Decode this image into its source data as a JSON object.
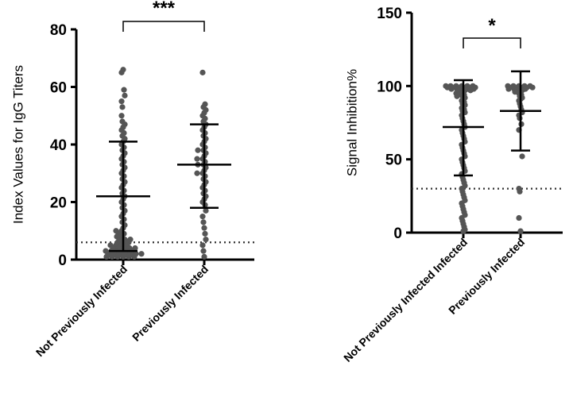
{
  "chart_data": [
    {
      "type": "scatter",
      "subtype": "dot-plot-mean-sd",
      "title": "",
      "xlabel": "",
      "ylabel": "Index Values for IgG Titers",
      "ylim": [
        0,
        80
      ],
      "yticks": [
        0,
        20,
        40,
        60,
        80
      ],
      "categories": [
        "Not Previously Infected",
        "Previously Infected"
      ],
      "threshold": 6,
      "significance": {
        "label": "***",
        "between": [
          0,
          1
        ]
      },
      "series": [
        {
          "name": "Not Previously Infected",
          "mean": 22,
          "sd_low": 3,
          "sd_high": 41,
          "values": [
            66,
            65,
            59,
            57,
            55,
            53,
            50,
            48,
            47,
            46,
            45,
            44,
            43,
            42,
            41,
            40,
            39,
            38,
            37,
            36,
            35,
            34,
            33,
            32,
            31,
            30,
            29,
            28,
            27,
            26,
            25,
            24,
            23,
            22,
            21,
            20,
            19,
            18,
            17,
            16,
            15,
            14,
            13,
            12,
            11,
            10,
            10,
            9,
            9,
            8,
            8,
            7,
            7,
            7,
            6,
            6,
            6,
            5,
            5,
            5,
            5,
            4,
            4,
            4,
            4,
            4,
            3,
            3,
            3,
            3,
            3,
            3,
            2,
            2,
            2,
            2,
            2,
            2,
            2,
            1,
            1,
            1,
            1,
            1,
            1
          ]
        },
        {
          "name": "Previously Infected",
          "mean": 33,
          "sd_low": 18,
          "sd_high": 47,
          "values": [
            65,
            54,
            53,
            52,
            51,
            50,
            49,
            48,
            47,
            46,
            45,
            44,
            43,
            42,
            41,
            40,
            39,
            38,
            38,
            37,
            36,
            35,
            35,
            34,
            33,
            33,
            32,
            31,
            30,
            30,
            29,
            28,
            27,
            26,
            25,
            24,
            23,
            22,
            21,
            20,
            19,
            17,
            15,
            13,
            11,
            9,
            7,
            5,
            3,
            1
          ]
        }
      ]
    },
    {
      "type": "scatter",
      "subtype": "dot-plot-mean-sd",
      "title": "",
      "xlabel": "",
      "ylabel": "Signal Inhibition%",
      "ylim": [
        0,
        150
      ],
      "yticks": [
        0,
        50,
        100,
        150
      ],
      "categories": [
        "Not Previously Infected Infected",
        "Previously Infected"
      ],
      "threshold": 30,
      "significance": {
        "label": "*",
        "between": [
          0,
          1
        ]
      },
      "series": [
        {
          "name": "Not Previously Infected Infected",
          "mean": 72,
          "sd_low": 39,
          "sd_high": 104,
          "values": [
            100,
            100,
            100,
            100,
            100,
            100,
            99,
            99,
            99,
            99,
            99,
            99,
            98,
            98,
            98,
            98,
            98,
            97,
            97,
            97,
            96,
            96,
            95,
            95,
            94,
            94,
            93,
            93,
            92,
            91,
            90,
            89,
            88,
            87,
            86,
            85,
            84,
            83,
            82,
            80,
            78,
            76,
            74,
            72,
            70,
            68,
            66,
            64,
            62,
            60,
            58,
            56,
            54,
            52,
            50,
            48,
            46,
            44,
            42,
            40,
            38,
            36,
            34,
            32,
            30,
            28,
            26,
            24,
            22,
            20,
            18,
            16,
            14,
            12,
            10,
            8,
            6,
            4,
            2,
            1
          ]
        },
        {
          "name": "Previously Infected",
          "mean": 83,
          "sd_low": 56,
          "sd_high": 110,
          "values": [
            100,
            100,
            100,
            100,
            100,
            99,
            99,
            99,
            99,
            99,
            98,
            98,
            98,
            98,
            97,
            97,
            96,
            96,
            95,
            94,
            93,
            92,
            91,
            90,
            88,
            86,
            84,
            82,
            80,
            78,
            74,
            70,
            52,
            30,
            28,
            10,
            1
          ]
        }
      ]
    }
  ]
}
